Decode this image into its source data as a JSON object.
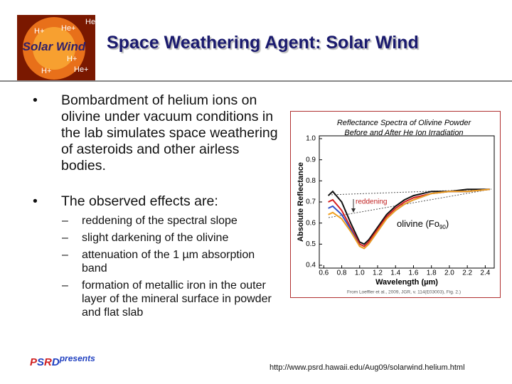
{
  "header": {
    "title": "Space Weathering Agent: Solar Wind",
    "logo": {
      "text": "Solar Wind",
      "ions": [
        "He+",
        "H+",
        "He+",
        "H+",
        "H+",
        "He+"
      ]
    }
  },
  "bullets": [
    {
      "text": "Bombardment of helium ions on olivine under vacuum conditions in the lab simulates space weathering of asteroids and other airless bodies."
    },
    {
      "text": "The observed effects are:",
      "sub": [
        "reddening of the spectral slope",
        "slight darkening of the olivine",
        "attenuation of the 1 µm absorption band",
        "formation of metallic iron in the outer layer of the mineral surface in powder and flat slab"
      ]
    }
  ],
  "chart_data": {
    "type": "line",
    "title": [
      "Reflectance Spectra of Olivine Powder",
      "Before and After He Ion Irradiation"
    ],
    "x_label": "Wavelength (µm)",
    "y_label": "Absolute Reflectance",
    "source": "From Loeffler et al., 2009, JGR, v. 114(E03003), Fig. 2.)",
    "annotations": {
      "reddening": "reddening",
      "olivine": {
        "text": "olivine (Fo",
        "sub": "90",
        "tail": ")"
      }
    },
    "x": [
      0.65,
      0.7,
      0.8,
      0.9,
      1.0,
      1.05,
      1.1,
      1.2,
      1.3,
      1.4,
      1.5,
      1.6,
      1.8,
      2.0,
      2.2,
      2.45
    ],
    "series": [
      {
        "color": "#111111",
        "values": [
          0.73,
          0.75,
          0.7,
          0.6,
          0.51,
          0.5,
          0.52,
          0.58,
          0.64,
          0.68,
          0.71,
          0.73,
          0.75,
          0.75,
          0.76,
          0.76
        ]
      },
      {
        "color": "#d42020",
        "values": [
          0.7,
          0.71,
          0.66,
          0.58,
          0.5,
          0.49,
          0.51,
          0.57,
          0.63,
          0.67,
          0.7,
          0.72,
          0.74,
          0.75,
          0.75,
          0.76
        ]
      },
      {
        "color": "#3050c8",
        "values": [
          0.67,
          0.68,
          0.64,
          0.57,
          0.49,
          0.48,
          0.5,
          0.56,
          0.62,
          0.66,
          0.69,
          0.71,
          0.74,
          0.75,
          0.75,
          0.76
        ]
      },
      {
        "color": "#f0a020",
        "values": [
          0.64,
          0.65,
          0.62,
          0.56,
          0.49,
          0.48,
          0.5,
          0.56,
          0.62,
          0.66,
          0.69,
          0.71,
          0.74,
          0.75,
          0.75,
          0.76
        ]
      }
    ],
    "xlim": [
      0.55,
      2.5
    ],
    "ylim": [
      0.4,
      1.0
    ],
    "xticks": [
      0.6,
      0.8,
      {
        "value": 1,
        "label": "1.0"
      },
      1.2,
      1.4,
      1.6,
      1.8,
      {
        "value": 2,
        "label": "2.0"
      },
      2.2,
      2.4
    ],
    "yticks": [
      0.4,
      0.5,
      0.6,
      0.7,
      0.8,
      0.9,
      {
        "value": 1,
        "label": "1.0"
      }
    ]
  },
  "footer": {
    "brand": {
      "letters": [
        "P",
        "S",
        "R",
        "D"
      ],
      "tagline": "presents"
    },
    "url": "http://www.psrd.hawaii.edu/Aug09/solarwind.helium.html"
  }
}
